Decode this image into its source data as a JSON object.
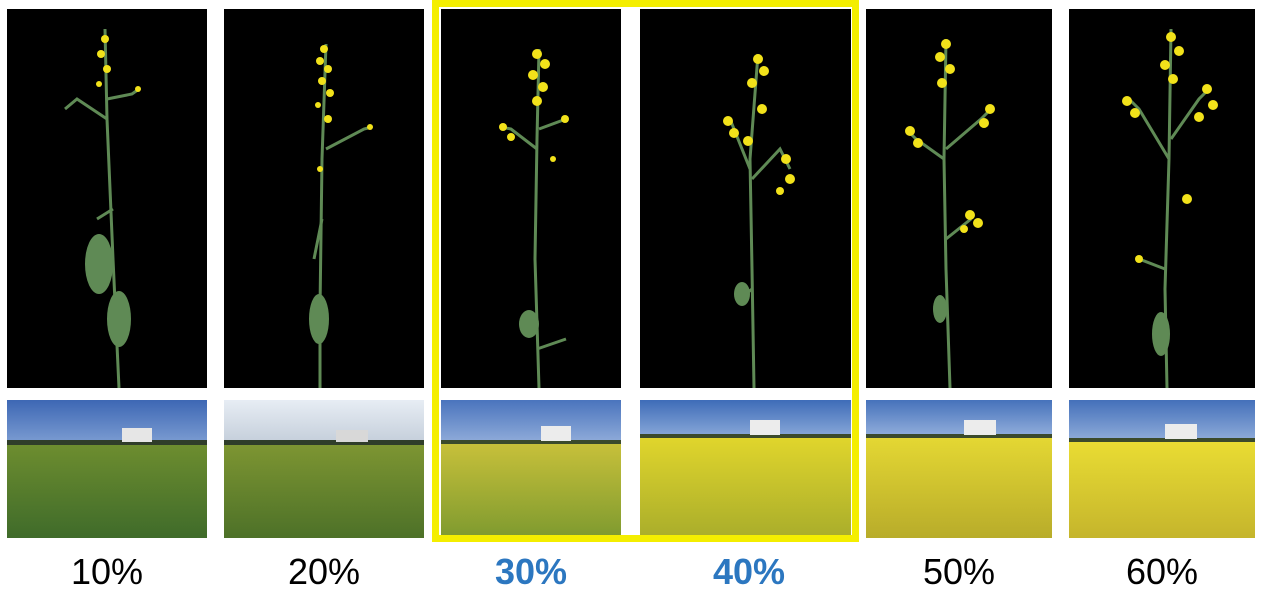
{
  "panels": [
    {
      "label": "10%",
      "highlighted": false
    },
    {
      "label": "20%",
      "highlighted": false
    },
    {
      "label": "30%",
      "highlighted": true
    },
    {
      "label": "40%",
      "highlighted": true
    },
    {
      "label": "50%",
      "highlighted": false
    },
    {
      "label": "60%",
      "highlighted": false
    }
  ],
  "colors": {
    "highlight_border": "#f4ee00",
    "highlight_label": "#2c77c0",
    "plant_background": "#000000",
    "flower": "#f2e21a",
    "stem": "#5f8a55"
  }
}
